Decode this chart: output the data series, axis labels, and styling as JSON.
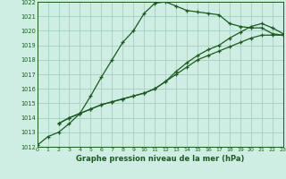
{
  "title": "Graphe pression niveau de la mer (hPa)",
  "background_color": "#ceeee4",
  "grid_color": "#a8d4c8",
  "line_color": "#1a5c1a",
  "x_min": 0,
  "x_max": 23,
  "y_min": 1012,
  "y_max": 1022,
  "series1_x": [
    0,
    1,
    2,
    3,
    4,
    5,
    6,
    7,
    8,
    9,
    10,
    11,
    12,
    13,
    14,
    15,
    16,
    17,
    18,
    19,
    20,
    21,
    22,
    23
  ],
  "series1_y": [
    1012.1,
    1012.7,
    1013.0,
    1013.6,
    1014.3,
    1015.5,
    1016.8,
    1018.0,
    1019.2,
    1020.0,
    1021.2,
    1021.9,
    1022.0,
    1021.7,
    1021.4,
    1021.3,
    1021.2,
    1021.1,
    1020.5,
    1020.3,
    1020.2,
    1020.2,
    1019.8,
    1019.7
  ],
  "series2_x": [
    2,
    3,
    4,
    5,
    6,
    7,
    8,
    9,
    10,
    11,
    12,
    13,
    14,
    15,
    16,
    17,
    18,
    19,
    20,
    21,
    22,
    23
  ],
  "series2_y": [
    1013.6,
    1014.0,
    1014.3,
    1014.6,
    1014.9,
    1015.1,
    1015.3,
    1015.5,
    1015.7,
    1016.0,
    1016.5,
    1017.0,
    1017.5,
    1018.0,
    1018.3,
    1018.6,
    1018.9,
    1019.2,
    1019.5,
    1019.7,
    1019.7,
    1019.7
  ],
  "series3_x": [
    2,
    3,
    4,
    5,
    6,
    7,
    8,
    9,
    10,
    11,
    12,
    13,
    14,
    15,
    16,
    17,
    18,
    19,
    20,
    21,
    22,
    23
  ],
  "series3_y": [
    1013.6,
    1014.0,
    1014.3,
    1014.6,
    1014.9,
    1015.1,
    1015.3,
    1015.5,
    1015.7,
    1016.0,
    1016.5,
    1017.2,
    1017.8,
    1018.3,
    1018.7,
    1019.0,
    1019.5,
    1019.9,
    1020.3,
    1020.5,
    1020.2,
    1019.8
  ],
  "yticks": [
    1012,
    1013,
    1014,
    1015,
    1016,
    1017,
    1018,
    1019,
    1020,
    1021,
    1022
  ],
  "xticks": [
    0,
    1,
    2,
    3,
    4,
    5,
    6,
    7,
    8,
    9,
    10,
    11,
    12,
    13,
    14,
    15,
    16,
    17,
    18,
    19,
    20,
    21,
    22,
    23
  ]
}
